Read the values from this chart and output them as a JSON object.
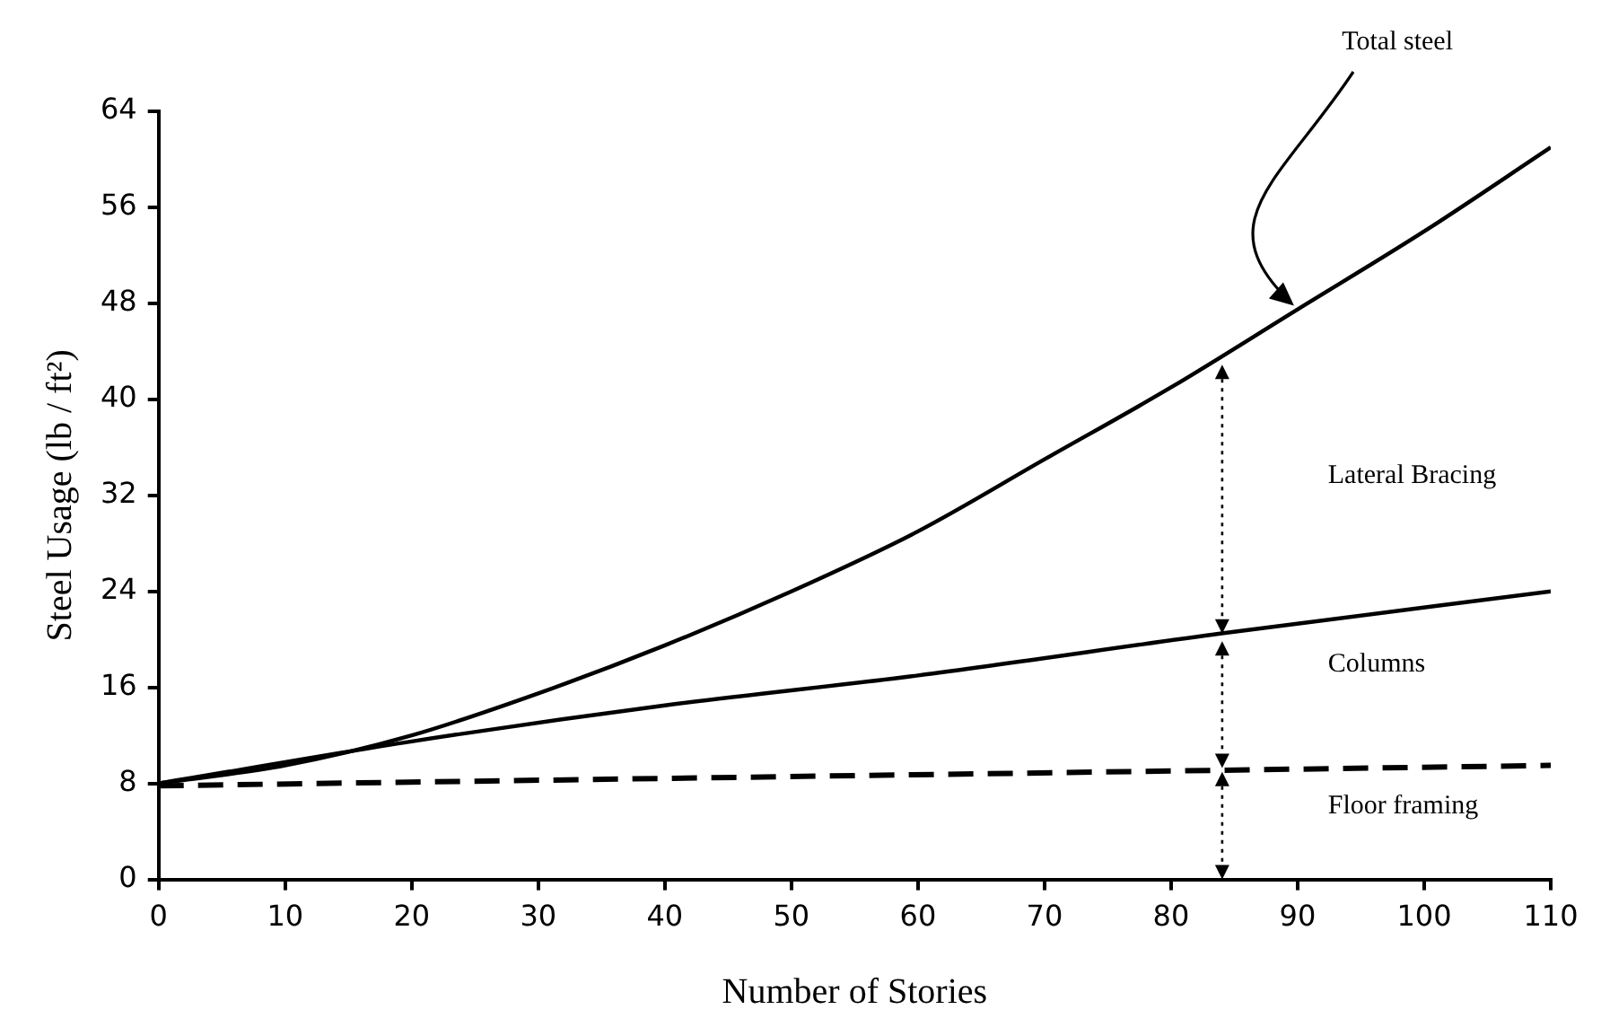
{
  "chart_data": {
    "type": "line",
    "xlabel": "Number of Stories",
    "ylabel": "Steel Usage (lb / ft²)",
    "xlim": [
      0,
      110
    ],
    "xticks": [
      0,
      10,
      20,
      30,
      40,
      50,
      60,
      70,
      80,
      90,
      100,
      110
    ],
    "ylim": [
      0,
      64
    ],
    "yticks": [
      0,
      8,
      16,
      24,
      32,
      40,
      48,
      56,
      64
    ],
    "grid": false,
    "legend": false,
    "marker": "none",
    "series": [
      {
        "color": "#000000",
        "x": [
          0,
          10,
          20,
          30,
          40,
          50,
          60,
          70,
          80,
          90,
          100,
          110
        ],
        "values": [
          8,
          9.5,
          12,
          15.5,
          19.5,
          24,
          29,
          35,
          41,
          47.5,
          54,
          61
        ]
      },
      {
        "color": "#000000",
        "x": [
          0,
          20,
          40,
          60,
          84,
          110
        ],
        "values": [
          8,
          11.5,
          14.5,
          17,
          20.5,
          24
        ]
      },
      {
        "color": "#000000",
        "x": [
          0,
          110
        ],
        "values": [
          7.8,
          9.5
        ],
        "line_style": "dashed"
      }
    ],
    "annotations": [
      "Total steel",
      "Lateral Bracing",
      "Columns",
      "Floor framing"
    ]
  }
}
